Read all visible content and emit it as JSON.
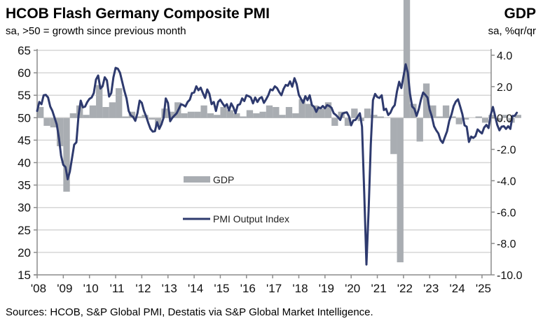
{
  "header": {
    "title": "HCOB Flash Germany Composite PMI",
    "subtitle": "sa, >50 = growth since previous month",
    "right_title": "GDP",
    "right_subtitle": "sa, %qr/qr"
  },
  "footer": {
    "source": "Sources: HCOB, S&P Global PMI, Destatis via S&P Global Market Intelligence."
  },
  "colors": {
    "pmi_line": "#2e3a6e",
    "gdp_bar": "#a9adb2",
    "grid": "#d6d6d6",
    "axis": "#8c8c8c"
  },
  "chart_data": {
    "type": "bar+line",
    "title": "HCOB Flash Germany Composite PMI",
    "subtitle": "sa, >50 = growth since previous month",
    "xlabel": "",
    "ylabel_left": "",
    "ylabel_right": "GDP sa, %qr/qr",
    "x_tick_labels": [
      "'08",
      "'09",
      "'10",
      "'11",
      "'12",
      "'13",
      "'14",
      "'15",
      "'16",
      "'17",
      "'18",
      "'19",
      "'20",
      "'21",
      "'22",
      "'23",
      "'24",
      "'25"
    ],
    "x_range": [
      2008.0,
      2025.35
    ],
    "y_left": {
      "range": [
        15,
        65
      ],
      "ticks": [
        15,
        20,
        25,
        30,
        35,
        40,
        45,
        50,
        55,
        60,
        65
      ]
    },
    "y_right": {
      "range": [
        -10.0,
        4.0
      ],
      "ticks": [
        "-10.0",
        "-8.0",
        "-6.0",
        "-4.0",
        "-2.0",
        "0.0",
        "2.0",
        "4.0"
      ],
      "tick_values": [
        -10,
        -8,
        -6,
        -4,
        -2,
        0,
        2,
        4
      ]
    },
    "grid": true,
    "legend": {
      "position": "center-left",
      "entries": [
        "GDP",
        "PMI Output Index"
      ]
    },
    "series": [
      {
        "name": "GDP",
        "type": "bar",
        "axis": "right",
        "frequency": "quarterly",
        "start": 2008.0,
        "values": [
          0.7,
          -0.5,
          -0.6,
          -1.8,
          -4.7,
          0.3,
          0.8,
          0.2,
          0.8,
          2.1,
          0.7,
          1.0,
          1.9,
          0.1,
          0.4,
          0.1,
          0.2,
          -0.1,
          -0.5,
          0.6,
          0.4,
          1.0,
          0.3,
          0.4,
          0.4,
          0.8,
          0.3,
          0.2,
          0.7,
          0.5,
          0.3,
          0.1,
          0.5,
          0.3,
          0.4,
          0.8,
          0.7,
          0.2,
          0.7,
          0.3,
          1.2,
          0.9,
          0.8,
          0.6,
          1.0,
          -0.5,
          0.4,
          -0.5,
          0.6,
          -0.2,
          0.6,
          0.2,
          0.1,
          0.0,
          -2.3,
          -9.2,
          8.8,
          0.9,
          -1.5,
          2.2,
          0.8,
          0.1,
          0.8,
          0.1,
          -0.4,
          -0.1,
          0.0,
          0.1,
          -0.3,
          0.2,
          -0.2,
          0.2,
          -0.3,
          0.2,
          0.0
        ]
      },
      {
        "name": "PMI Output Index",
        "type": "line",
        "axis": "left",
        "frequency": "monthly",
        "start": 2008.0,
        "values": [
          51.5,
          53.5,
          53.0,
          55.0,
          55.1,
          54.5,
          52.5,
          51.5,
          50.0,
          48.5,
          45.5,
          41.5,
          39.5,
          39.0,
          36.3,
          38.0,
          41.0,
          44.0,
          44.5,
          50.5,
          53.8,
          52.3,
          52.5,
          53.5,
          54.2,
          54.5,
          55.5,
          58.5,
          59.4,
          56.5,
          57.0,
          59.0,
          58.3,
          54.7,
          55.5,
          59.0,
          61.1,
          60.9,
          60.0,
          58.0,
          56.0,
          54.3,
          51.5,
          50.5,
          50.2,
          49.3,
          51.0,
          53.8,
          53.3,
          51.5,
          50.3,
          48.8,
          47.5,
          46.9,
          47.0,
          49.0,
          47.5,
          48.5,
          50.0,
          54.3,
          53.3,
          49.2,
          50.0,
          50.5,
          51.0,
          52.0,
          53.0,
          52.8,
          52.5,
          53.5,
          54.0,
          55.5,
          55.6,
          57.0,
          56.1,
          56.7,
          55.5,
          54.4,
          56.3,
          55.3,
          53.0,
          53.5,
          51.5,
          53.5,
          54.0,
          53.2,
          52.5,
          53.0,
          51.6,
          53.2,
          52.3,
          51.0,
          52.8,
          53.0,
          54.3,
          53.7,
          55.0,
          54.8,
          54.5,
          53.2,
          54.5,
          53.5,
          54.3,
          54.6,
          53.3,
          54.1,
          55.0,
          56.3,
          56.1,
          57.0,
          56.6,
          55.7,
          55.0,
          56.4,
          57.3,
          57.1,
          58.1,
          56.9,
          58.8,
          57.5,
          55.1,
          54.2,
          53.3,
          54.8,
          53.9,
          55.0,
          52.8,
          52.4,
          51.3,
          52.3,
          52.1,
          52.6,
          52.1,
          52.8,
          52.6,
          52.2,
          51.0,
          50.6,
          50.1,
          49.5,
          50.9,
          51.1,
          51.2,
          50.3,
          48.3,
          49.4,
          49.5,
          50.2,
          51.0,
          48.0,
          33.0,
          17.3,
          29.3,
          44.0,
          53.9,
          55.3,
          54.6,
          54.4,
          55.0,
          51.7,
          52.0,
          50.6,
          51.1,
          52.2,
          52.8,
          55.8,
          58.0,
          56.6,
          59.2,
          61.9,
          60.0,
          55.3,
          52.5,
          52.0,
          50.4,
          51.9,
          54.0,
          55.6,
          55.1,
          54.5,
          51.8,
          50.3,
          48.1,
          47.2,
          46.5,
          45.0,
          44.4,
          45.7,
          47.0,
          49.3,
          50.7,
          52.6,
          53.6,
          54.1,
          52.5,
          50.8,
          48.3,
          48.0,
          44.6,
          45.8,
          45.5,
          45.9,
          47.4,
          46.9,
          46.5,
          47.8,
          48.4,
          47.7,
          50.6,
          52.4,
          50.4,
          48.4,
          47.2,
          48.0,
          48.1,
          47.5,
          48.1,
          47.5,
          50.4,
          50.4,
          51.1
        ]
      }
    ]
  }
}
